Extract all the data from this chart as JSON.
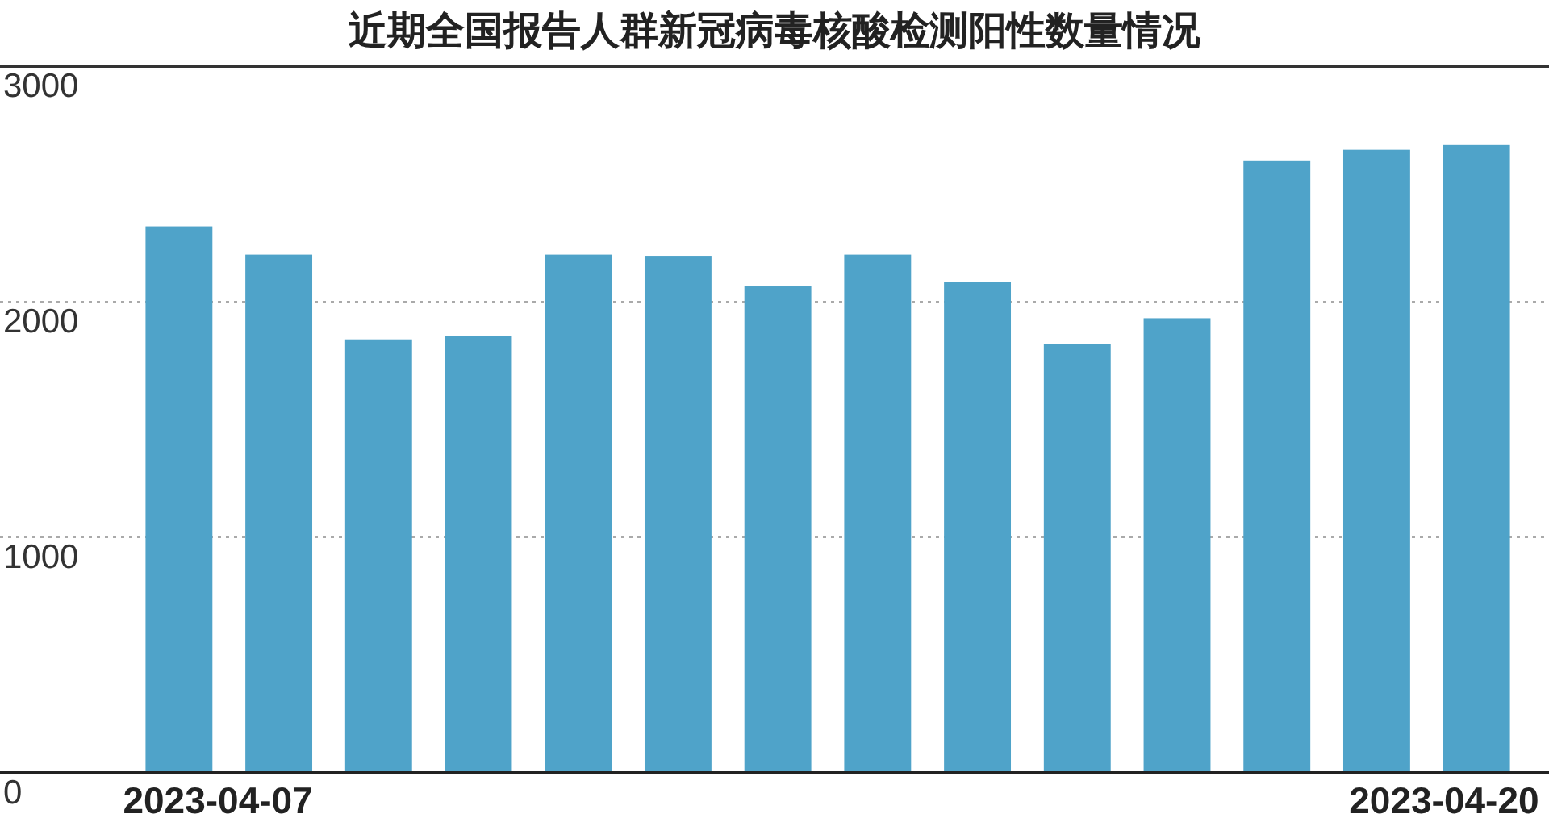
{
  "chart_data": {
    "type": "bar",
    "title": "近期全国报告人群新冠病毒核酸检测阳性数量情况",
    "categories": [
      "2023-04-07",
      null,
      null,
      null,
      null,
      null,
      null,
      null,
      null,
      null,
      null,
      null,
      null,
      "2023-04-20"
    ],
    "values": [
      2320,
      2200,
      1840,
      1855,
      2200,
      2195,
      2065,
      2200,
      2085,
      1820,
      1930,
      2600,
      2645,
      2665
    ],
    "color": "#4fa3c9",
    "ylim": [
      0,
      3000
    ],
    "yticks": [
      0,
      1000,
      2000,
      3000
    ],
    "grid": "y"
  }
}
